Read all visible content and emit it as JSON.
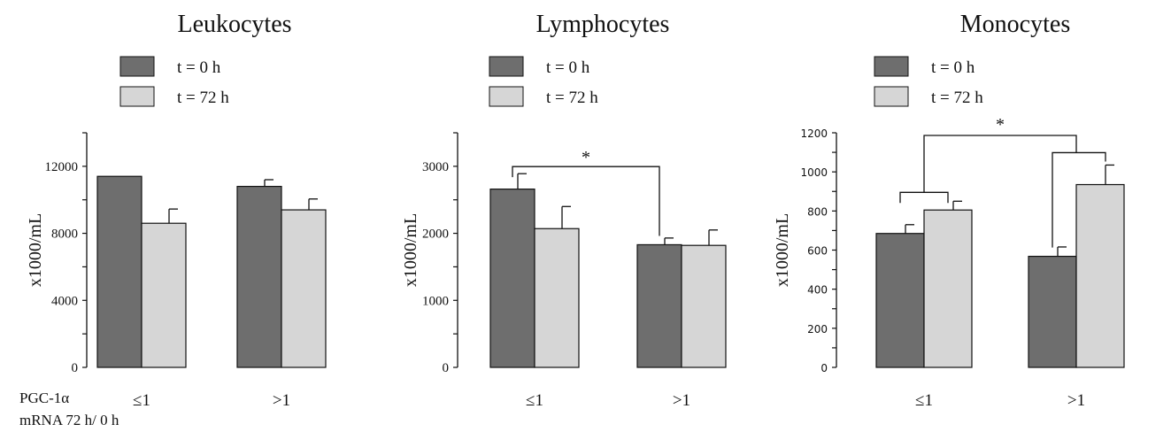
{
  "colors": {
    "t0": "#6e6e6e",
    "t72": "#d6d6d6",
    "stroke": "#111111"
  },
  "chart_data": [
    {
      "type": "bar",
      "title": "Leukocytes",
      "ylabel": "x1000/mL",
      "ylim": [
        0,
        14000
      ],
      "yticks": [
        0,
        4000,
        8000,
        12000
      ],
      "categories": [
        "≤1",
        ">1"
      ],
      "series": [
        {
          "name": "t = 0 h",
          "values": [
            11400,
            10800
          ],
          "errors": [
            0,
            400
          ]
        },
        {
          "name": "t = 72 h",
          "values": [
            8600,
            9400
          ],
          "errors": [
            850,
            650
          ]
        }
      ],
      "legend": "top-left",
      "annotations": []
    },
    {
      "type": "bar",
      "title": "Lymphocytes",
      "ylabel": "x1000/mL",
      "ylim": [
        0,
        3500
      ],
      "yticks": [
        0,
        1000,
        2000,
        3000
      ],
      "categories": [
        "≤1",
        ">1"
      ],
      "series": [
        {
          "name": "t = 0 h",
          "values": [
            2660,
            1830
          ],
          "errors": [
            230,
            100
          ]
        },
        {
          "name": "t = 72 h",
          "values": [
            2070,
            1820
          ],
          "errors": [
            330,
            230
          ]
        }
      ],
      "legend": "top-left",
      "annotations": [
        "*"
      ]
    },
    {
      "type": "bar",
      "title": "Monocytes",
      "ylabel": "x1000/mL",
      "ylim": [
        0,
        1200
      ],
      "yticks": [
        0,
        200,
        400,
        600,
        800,
        1000,
        1200
      ],
      "categories": [
        "≤1",
        ">1"
      ],
      "series": [
        {
          "name": "t = 0 h",
          "values": [
            685,
            568
          ],
          "errors": [
            45,
            48
          ]
        },
        {
          "name": "t = 72 h",
          "values": [
            805,
            935
          ],
          "errors": [
            45,
            100
          ]
        }
      ],
      "legend": "top-left",
      "annotations": [
        "*"
      ]
    }
  ],
  "bottom_label": {
    "line1": "PGC-1α",
    "line2": "mRNA 72 h/ 0 h"
  }
}
